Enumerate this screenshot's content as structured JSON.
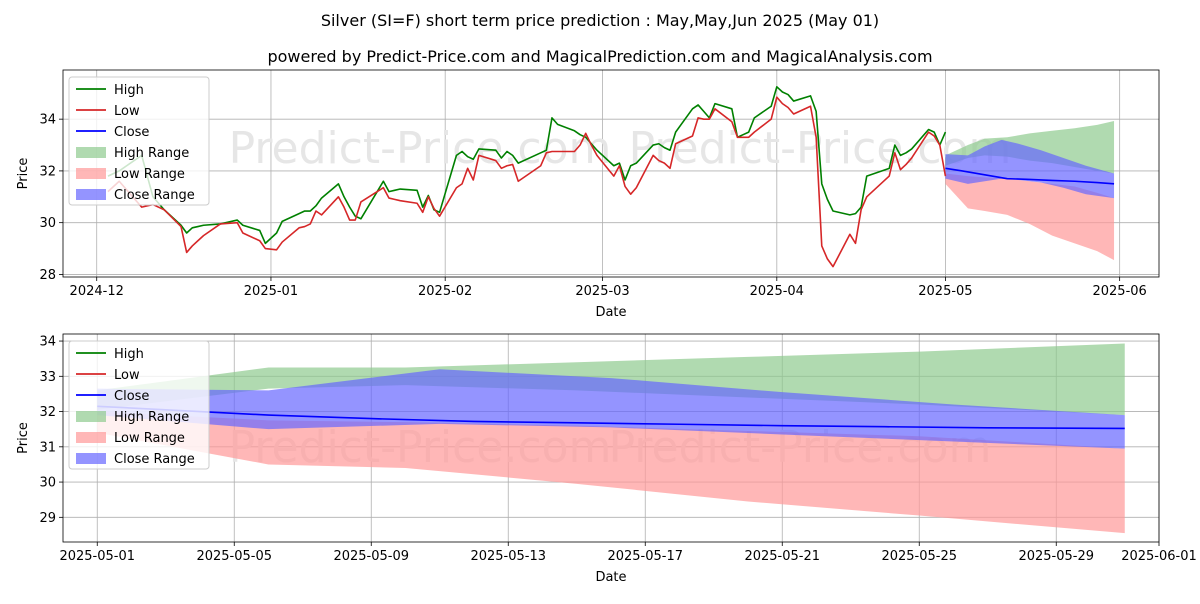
{
  "title": "Silver (SI=F) short term price prediction : May,May,Jun 2025 (May 01)",
  "subtitle": "powered by Predict-Price.com and MagicalPrediction.com and MagicalAnalysis.com",
  "watermark": "Predict-Price.com",
  "colors": {
    "high": "#008000",
    "low": "#d62728",
    "close": "#0000ff",
    "high_range": "#8fca8f",
    "low_range": "#ff9999",
    "close_range": "#6666ff"
  },
  "chart_data": [
    {
      "type": "line",
      "name": "top",
      "xlabel": "Date",
      "ylabel": "Price",
      "x_ticks": [
        "2024-12",
        "2025-01",
        "2025-02",
        "2025-03",
        "2025-04",
        "2025-05",
        "2025-06"
      ],
      "x_tick_dates": [
        "2024-12-01",
        "2025-01-01",
        "2025-02-01",
        "2025-03-01",
        "2025-04-01",
        "2025-05-01",
        "2025-06-01"
      ],
      "xlim": [
        "2024-11-25",
        "2025-06-08"
      ],
      "y_ticks": [
        28,
        30,
        32,
        34
      ],
      "ylim": [
        27.9,
        35.9
      ],
      "grid": true,
      "legend": {
        "position": "top-left",
        "entries": [
          "High",
          "Low",
          "Close",
          "High Range",
          "Low Range",
          "Close Range"
        ]
      },
      "series": [
        {
          "name": "High",
          "dates": [
            "2024-12-03",
            "2024-12-05",
            "2024-12-09",
            "2024-12-11",
            "2024-12-13",
            "2024-12-16",
            "2024-12-17",
            "2024-12-18",
            "2024-12-19",
            "2024-12-20",
            "2024-12-23",
            "2024-12-26",
            "2024-12-27",
            "2024-12-30",
            "2024-12-31",
            "2025-01-02",
            "2025-01-03",
            "2025-01-06",
            "2025-01-07",
            "2025-01-08",
            "2025-01-09",
            "2025-01-10",
            "2025-01-13",
            "2025-01-14",
            "2025-01-15",
            "2025-01-16",
            "2025-01-17",
            "2025-01-21",
            "2025-01-22",
            "2025-01-23",
            "2025-01-24",
            "2025-01-27",
            "2025-01-28",
            "2025-01-29",
            "2025-01-30",
            "2025-01-31",
            "2025-02-03",
            "2025-02-04",
            "2025-02-05",
            "2025-02-06",
            "2025-02-07",
            "2025-02-10",
            "2025-02-11",
            "2025-02-12",
            "2025-02-13",
            "2025-02-14",
            "2025-02-18",
            "2025-02-19",
            "2025-02-20",
            "2025-02-21",
            "2025-02-24",
            "2025-02-25",
            "2025-02-26",
            "2025-02-27",
            "2025-02-28",
            "2025-03-03",
            "2025-03-04",
            "2025-03-05",
            "2025-03-06",
            "2025-03-07",
            "2025-03-10",
            "2025-03-11",
            "2025-03-12",
            "2025-03-13",
            "2025-03-14",
            "2025-03-17",
            "2025-03-18",
            "2025-03-19",
            "2025-03-20",
            "2025-03-21",
            "2025-03-24",
            "2025-03-25",
            "2025-03-26",
            "2025-03-27",
            "2025-03-28",
            "2025-03-31",
            "2025-04-01",
            "2025-04-02",
            "2025-04-03",
            "2025-04-04",
            "2025-04-07",
            "2025-04-08",
            "2025-04-09",
            "2025-04-10",
            "2025-04-11",
            "2025-04-14",
            "2025-04-15",
            "2025-04-16",
            "2025-04-17",
            "2025-04-21",
            "2025-04-22",
            "2025-04-23",
            "2025-04-24",
            "2025-04-25",
            "2025-04-28",
            "2025-04-29",
            "2025-04-30",
            "2025-05-01"
          ],
          "values": [
            31.8,
            32.0,
            32.6,
            31.0,
            30.5,
            29.9,
            29.6,
            29.8,
            29.85,
            29.9,
            29.95,
            30.1,
            29.9,
            29.7,
            29.2,
            29.6,
            30.05,
            30.35,
            30.45,
            30.45,
            30.65,
            30.95,
            31.5,
            31.0,
            30.6,
            30.25,
            30.15,
            31.6,
            31.2,
            31.25,
            31.3,
            31.25,
            30.6,
            31.05,
            30.5,
            30.4,
            32.6,
            32.75,
            32.55,
            32.45,
            32.85,
            32.8,
            32.5,
            32.75,
            32.6,
            32.3,
            32.7,
            32.8,
            34.05,
            33.8,
            33.55,
            33.4,
            33.3,
            33.05,
            32.8,
            32.2,
            32.3,
            31.65,
            32.2,
            32.3,
            33.0,
            33.05,
            32.9,
            32.8,
            33.5,
            34.4,
            34.55,
            34.3,
            34.05,
            34.6,
            34.4,
            33.3,
            33.4,
            33.5,
            34.05,
            34.5,
            35.25,
            35.05,
            34.95,
            34.7,
            34.9,
            34.3,
            31.5,
            30.9,
            30.45,
            30.3,
            30.35,
            30.6,
            31.8,
            32.1,
            33.0,
            32.6,
            32.7,
            32.85,
            33.6,
            33.5,
            33.0,
            33.5
          ]
        },
        {
          "name": "Low",
          "dates": [
            "2024-12-03",
            "2024-12-05",
            "2024-12-09",
            "2024-12-11",
            "2024-12-13",
            "2024-12-16",
            "2024-12-17",
            "2024-12-18",
            "2024-12-19",
            "2024-12-20",
            "2024-12-23",
            "2024-12-26",
            "2024-12-27",
            "2024-12-30",
            "2024-12-31",
            "2025-01-02",
            "2025-01-03",
            "2025-01-06",
            "2025-01-07",
            "2025-01-08",
            "2025-01-09",
            "2025-01-10",
            "2025-01-13",
            "2025-01-14",
            "2025-01-15",
            "2025-01-16",
            "2025-01-17",
            "2025-01-21",
            "2025-01-22",
            "2025-01-23",
            "2025-01-24",
            "2025-01-27",
            "2025-01-28",
            "2025-01-29",
            "2025-01-30",
            "2025-01-31",
            "2025-02-03",
            "2025-02-04",
            "2025-02-05",
            "2025-02-06",
            "2025-02-07",
            "2025-02-10",
            "2025-02-11",
            "2025-02-12",
            "2025-02-13",
            "2025-02-14",
            "2025-02-18",
            "2025-02-19",
            "2025-02-20",
            "2025-02-21",
            "2025-02-24",
            "2025-02-25",
            "2025-02-26",
            "2025-02-27",
            "2025-02-28",
            "2025-03-03",
            "2025-03-04",
            "2025-03-05",
            "2025-03-06",
            "2025-03-07",
            "2025-03-10",
            "2025-03-11",
            "2025-03-12",
            "2025-03-13",
            "2025-03-14",
            "2025-03-17",
            "2025-03-18",
            "2025-03-19",
            "2025-03-20",
            "2025-03-21",
            "2025-03-24",
            "2025-03-25",
            "2025-03-26",
            "2025-03-27",
            "2025-03-28",
            "2025-03-31",
            "2025-04-01",
            "2025-04-02",
            "2025-04-03",
            "2025-04-04",
            "2025-04-07",
            "2025-04-08",
            "2025-04-09",
            "2025-04-10",
            "2025-04-11",
            "2025-04-14",
            "2025-04-15",
            "2025-04-16",
            "2025-04-17",
            "2025-04-21",
            "2025-04-22",
            "2025-04-23",
            "2025-04-24",
            "2025-04-25",
            "2025-04-28",
            "2025-04-29",
            "2025-04-30",
            "2025-05-01"
          ],
          "values": [
            31.2,
            31.6,
            30.6,
            30.7,
            30.5,
            29.85,
            28.85,
            29.1,
            29.3,
            29.5,
            29.95,
            30.0,
            29.6,
            29.3,
            29.0,
            28.95,
            29.25,
            29.8,
            29.85,
            29.95,
            30.45,
            30.3,
            31.0,
            30.6,
            30.1,
            30.1,
            30.8,
            31.35,
            30.95,
            30.9,
            30.85,
            30.75,
            30.4,
            31.0,
            30.55,
            30.25,
            31.35,
            31.5,
            32.1,
            31.65,
            32.6,
            32.4,
            32.1,
            32.2,
            32.25,
            31.6,
            32.2,
            32.7,
            32.75,
            32.75,
            32.75,
            33.0,
            33.45,
            33.0,
            32.6,
            31.8,
            32.2,
            31.4,
            31.1,
            31.35,
            32.6,
            32.4,
            32.3,
            32.1,
            33.05,
            33.35,
            34.05,
            34.0,
            34.0,
            34.4,
            33.9,
            33.3,
            33.3,
            33.3,
            33.5,
            34.0,
            34.85,
            34.6,
            34.45,
            34.2,
            34.5,
            33.3,
            29.1,
            28.6,
            28.3,
            29.55,
            29.2,
            30.5,
            31.0,
            31.8,
            32.7,
            32.05,
            32.25,
            32.5,
            33.5,
            33.35,
            33.0,
            31.8
          ]
        },
        {
          "name": "Close",
          "dates": [
            "2025-05-01",
            "2025-05-04",
            "2025-05-08",
            "2025-05-12",
            "2025-05-16",
            "2025-05-20",
            "2025-05-24",
            "2025-05-28",
            "2025-05-31"
          ],
          "values": [
            32.1,
            32.0,
            31.85,
            31.7,
            31.67,
            31.63,
            31.6,
            31.55,
            31.5
          ]
        }
      ],
      "ranges": [
        {
          "name": "High Range",
          "dates": [
            "2025-05-01",
            "2025-05-05",
            "2025-05-08",
            "2025-05-12",
            "2025-05-16",
            "2025-05-20",
            "2025-05-24",
            "2025-05-28",
            "2025-05-31"
          ],
          "upper": [
            32.6,
            33.0,
            33.25,
            33.3,
            33.45,
            33.55,
            33.65,
            33.78,
            33.93
          ],
          "lower": [
            32.2,
            32.5,
            32.6,
            32.55,
            32.4,
            32.3,
            32.15,
            32.0,
            31.9
          ]
        },
        {
          "name": "Low Range",
          "dates": [
            "2025-05-01",
            "2025-05-05",
            "2025-05-08",
            "2025-05-12",
            "2025-05-16",
            "2025-05-20",
            "2025-05-24",
            "2025-05-28",
            "2025-05-31"
          ],
          "upper": [
            31.9,
            31.8,
            31.75,
            31.7,
            31.6,
            31.5,
            31.4,
            31.15,
            30.95
          ],
          "lower": [
            31.5,
            30.55,
            30.45,
            30.3,
            29.95,
            29.5,
            29.2,
            28.9,
            28.55
          ]
        },
        {
          "name": "Close Range",
          "dates": [
            "2025-05-01",
            "2025-05-05",
            "2025-05-08",
            "2025-05-11",
            "2025-05-14",
            "2025-05-18",
            "2025-05-22",
            "2025-05-26",
            "2025-05-31"
          ],
          "upper": [
            32.65,
            32.6,
            32.95,
            33.2,
            33.05,
            32.8,
            32.5,
            32.2,
            31.9
          ],
          "lower": [
            31.7,
            31.5,
            31.6,
            31.7,
            31.65,
            31.55,
            31.35,
            31.1,
            30.95
          ]
        }
      ]
    },
    {
      "type": "line",
      "name": "bottom",
      "xlabel": "Date",
      "ylabel": "Price",
      "x_ticks": [
        "2025-05-01",
        "2025-05-05",
        "2025-05-09",
        "2025-05-13",
        "2025-05-17",
        "2025-05-21",
        "2025-05-25",
        "2025-05-29",
        "2025-06-01"
      ],
      "x_tick_dates": [
        "2025-05-01",
        "2025-05-05",
        "2025-05-09",
        "2025-05-13",
        "2025-05-17",
        "2025-05-21",
        "2025-05-25",
        "2025-05-29",
        "2025-06-01"
      ],
      "xlim": [
        "2025-04-30",
        "2025-06-01"
      ],
      "y_ticks": [
        29,
        30,
        31,
        32,
        33,
        34
      ],
      "ylim": [
        28.3,
        34.2
      ],
      "grid": true,
      "legend": {
        "position": "top-left",
        "entries": [
          "High",
          "Low",
          "Close",
          "High Range",
          "Low Range",
          "Close Range"
        ]
      },
      "series": [
        {
          "name": "Close",
          "dates": [
            "2025-05-01",
            "2025-05-03",
            "2025-05-06",
            "2025-05-09",
            "2025-05-12",
            "2025-05-15",
            "2025-05-18",
            "2025-05-21",
            "2025-05-24",
            "2025-05-27",
            "2025-05-31"
          ],
          "values": [
            32.15,
            32.05,
            31.9,
            31.8,
            31.72,
            31.68,
            31.64,
            31.6,
            31.57,
            31.54,
            31.52
          ]
        }
      ],
      "ranges": [
        {
          "name": "High Range",
          "dates": [
            "2025-05-01",
            "2025-05-06",
            "2025-05-10",
            "2025-05-15",
            "2025-05-20",
            "2025-05-25",
            "2025-05-31"
          ],
          "upper": [
            32.6,
            33.25,
            33.25,
            33.4,
            33.55,
            33.7,
            33.93
          ],
          "lower": [
            32.05,
            32.65,
            32.75,
            32.6,
            32.4,
            32.2,
            31.9
          ]
        },
        {
          "name": "Low Range",
          "dates": [
            "2025-05-01",
            "2025-05-06",
            "2025-05-10",
            "2025-05-15",
            "2025-05-20",
            "2025-05-25",
            "2025-05-31"
          ],
          "upper": [
            32.0,
            31.75,
            31.7,
            31.6,
            31.45,
            31.3,
            30.95
          ],
          "lower": [
            31.4,
            30.5,
            30.4,
            29.95,
            29.45,
            29.05,
            28.55
          ]
        },
        {
          "name": "Close Range",
          "dates": [
            "2025-05-01",
            "2025-05-06",
            "2025-05-11",
            "2025-05-16",
            "2025-05-21",
            "2025-05-26",
            "2025-05-31"
          ],
          "upper": [
            32.65,
            32.6,
            33.2,
            32.95,
            32.55,
            32.2,
            31.9
          ],
          "lower": [
            31.9,
            31.5,
            31.65,
            31.55,
            31.35,
            31.15,
            30.95
          ]
        }
      ]
    }
  ]
}
